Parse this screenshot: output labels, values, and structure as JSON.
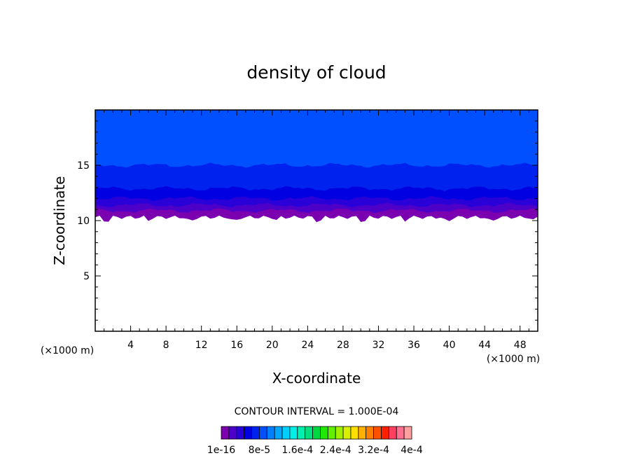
{
  "chart_data": {
    "type": "contour",
    "title": "density of cloud",
    "xlabel": "X-coordinate",
    "ylabel": "Z-coordinate",
    "x_unit": "(×1000 m)",
    "xlim": [
      0,
      50
    ],
    "ylim": [
      0,
      20
    ],
    "x_ticks": [
      4,
      8,
      12,
      16,
      20,
      24,
      28,
      32,
      36,
      40,
      44,
      48
    ],
    "y_ticks": [
      5,
      10,
      15
    ],
    "contour_interval_text": "CONTOUR INTERVAL = 1.000E-04",
    "colorbar_labels": [
      "1e-16",
      "8e-5",
      "1.6e-4",
      "2.4e-4",
      "3.2e-4",
      "4e-4"
    ],
    "colorbar_colors": [
      "#7a00b0",
      "#4d00c8",
      "#2a00d8",
      "#0000e0",
      "#0022ee",
      "#0050ff",
      "#0080ff",
      "#00a8ff",
      "#00d0ff",
      "#00f0e8",
      "#00f0b0",
      "#00e080",
      "#00d840",
      "#20e800",
      "#60f000",
      "#a0f000",
      "#d8f000",
      "#ffe000",
      "#ffb000",
      "#ff8000",
      "#ff5000",
      "#ff2000",
      "#ff4060",
      "#ff7090",
      "#ffa0a0"
    ],
    "layers": [
      {
        "level": "1e-16",
        "color": "#7a00b0",
        "z_bottom": 10.3,
        "z_top": 10.9
      },
      {
        "level": "2e-5",
        "color": "#4d00c8",
        "z_bottom": 10.9,
        "z_top": 11.4
      },
      {
        "level": "4e-5",
        "color": "#2a00d8",
        "z_bottom": 11.4,
        "z_top": 12.0
      },
      {
        "level": "6e-5",
        "color": "#0000e0",
        "z_bottom": 12.0,
        "z_top": 12.9
      },
      {
        "level": "8e-5",
        "color": "#0022ee",
        "z_bottom": 12.9,
        "z_top": 15.0
      },
      {
        "level": "1e-4",
        "color": "#0050ff",
        "z_bottom": 15.0,
        "z_top": 20.0
      }
    ]
  }
}
